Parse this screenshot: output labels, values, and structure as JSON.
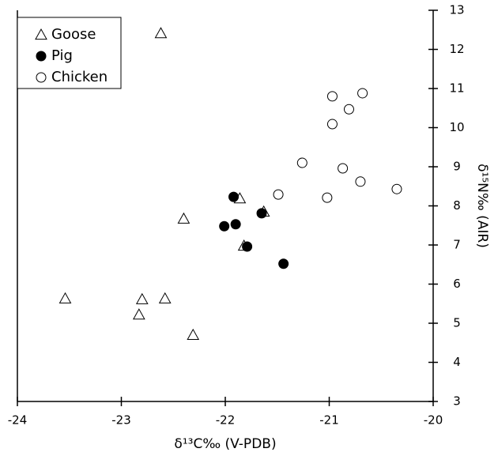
{
  "chart_data": {
    "type": "scatter",
    "x_label": "δ¹³C‰ (V-PDB)",
    "y_label": "δ¹⁵N‰ (AIR)",
    "xlim": [
      -24,
      -20
    ],
    "xticks": [
      -24,
      -23,
      -22,
      -21,
      -20
    ],
    "ylim": [
      3,
      13
    ],
    "yticks": [
      3,
      4,
      5,
      6,
      7,
      8,
      9,
      10,
      11,
      12,
      13
    ],
    "y_axis_side": "right",
    "legend": "top-left",
    "series": [
      {
        "name": "Goose",
        "color": "#000000",
        "marker": "triangle",
        "x": [
          -23.54,
          -22.62,
          -22.8,
          -22.83,
          -22.58,
          -22.31,
          -22.4,
          -21.86,
          -21.63,
          -21.82
        ],
        "values": [
          5.63,
          12.41,
          5.61,
          5.22,
          5.63,
          4.7,
          7.67,
          8.19,
          7.85,
          6.98
        ]
      },
      {
        "name": "Pig",
        "color": "#000000",
        "marker": "filled-circle",
        "x": [
          -21.92,
          -22.01,
          -21.9,
          -21.65,
          -21.79,
          -21.44
        ],
        "values": [
          8.23,
          7.48,
          7.53,
          7.81,
          6.96,
          6.52
        ]
      },
      {
        "name": "Chicken",
        "color": "#000000",
        "marker": "open-circle",
        "x": [
          -20.97,
          -20.68,
          -20.81,
          -20.97,
          -21.26,
          -20.87,
          -20.7,
          -20.35,
          -21.49,
          -21.02
        ],
        "values": [
          10.8,
          10.88,
          10.47,
          10.09,
          9.1,
          8.96,
          8.62,
          8.43,
          8.29,
          8.21
        ]
      }
    ]
  }
}
